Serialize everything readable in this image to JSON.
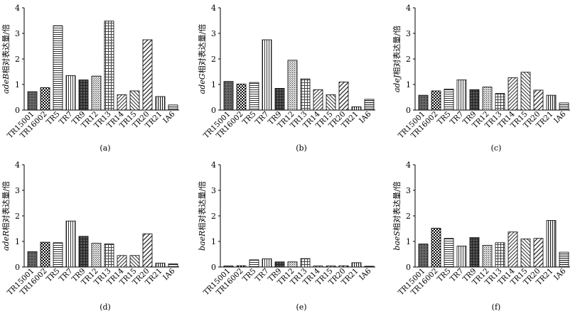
{
  "categories": [
    "TR15001",
    "TR16002",
    "TR5",
    "TR7",
    "TR9",
    "TR12",
    "TR13",
    "TR14",
    "TR15",
    "TR20",
    "TR21",
    "IA6"
  ],
  "chart_data": [
    {
      "type": "bar",
      "panel_label": "(a)",
      "gene": "adeB",
      "ylabel_suffix": "相对表达量/倍",
      "ylim": [
        0,
        4
      ],
      "yticks": [
        "0",
        "1",
        "2",
        "3",
        "4"
      ],
      "values": [
        0.72,
        0.88,
        3.3,
        1.35,
        1.18,
        1.33,
        3.48,
        0.6,
        0.75,
        2.75,
        0.53,
        0.2
      ]
    },
    {
      "type": "bar",
      "panel_label": "(b)",
      "gene": "adeG",
      "ylabel_suffix": "相对表达量/倍",
      "ylim": [
        0,
        4
      ],
      "yticks": [
        "0",
        "1",
        "2",
        "3",
        "4"
      ],
      "values": [
        1.12,
        1.02,
        1.08,
        2.75,
        0.85,
        1.95,
        1.22,
        0.8,
        0.6,
        1.1,
        0.13,
        0.42
      ]
    },
    {
      "type": "bar",
      "panel_label": "(c)",
      "gene": "adeJ",
      "ylabel_suffix": "相对表达量/倍",
      "ylim": [
        0,
        4
      ],
      "yticks": [
        "0",
        "1",
        "2",
        "3",
        "4"
      ],
      "values": [
        0.58,
        0.75,
        0.82,
        1.18,
        0.8,
        0.9,
        0.65,
        1.27,
        1.48,
        0.78,
        0.58,
        0.28
      ]
    },
    {
      "type": "bar",
      "panel_label": "(d)",
      "gene": "adeR",
      "ylabel_suffix": "相对表达量/倍",
      "ylim": [
        0,
        4
      ],
      "yticks": [
        "0",
        "1",
        "2",
        "3",
        "4"
      ],
      "values": [
        0.6,
        0.97,
        0.95,
        1.8,
        1.2,
        0.93,
        0.9,
        0.45,
        0.45,
        1.3,
        0.15,
        0.12
      ]
    },
    {
      "type": "bar",
      "panel_label": "(e)",
      "gene": "baeR",
      "ylabel_suffix": "相对表达量/倍",
      "ylim": [
        0,
        4
      ],
      "yticks": [
        "0",
        "1",
        "2",
        "3",
        "4"
      ],
      "values": [
        0.04,
        0.05,
        0.28,
        0.32,
        0.2,
        0.2,
        0.33,
        0.04,
        0.04,
        0.05,
        0.17,
        0.03
      ]
    },
    {
      "type": "bar",
      "panel_label": "(f)",
      "gene": "baeS",
      "ylabel_suffix": "相对表达量/倍",
      "ylim": [
        0,
        4
      ],
      "yticks": [
        "0",
        "1",
        "2",
        "3",
        "4"
      ],
      "values": [
        0.9,
        1.52,
        1.12,
        0.82,
        1.15,
        0.85,
        0.95,
        1.37,
        1.1,
        1.12,
        1.82,
        0.58
      ]
    }
  ]
}
